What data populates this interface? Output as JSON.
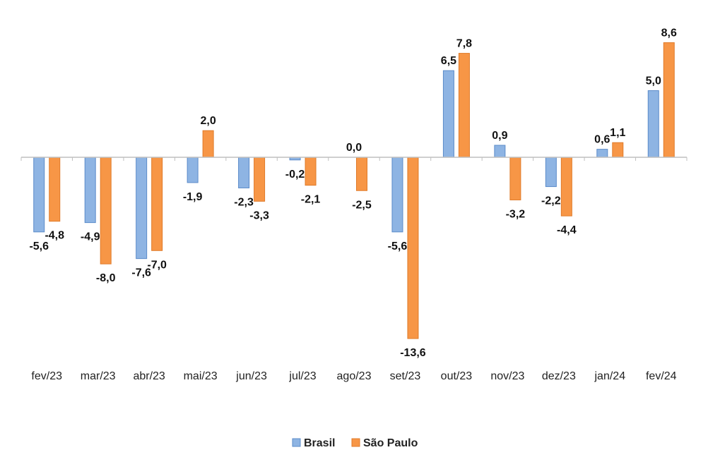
{
  "chart_data": {
    "type": "bar",
    "categories": [
      "fev/23",
      "mar/23",
      "abr/23",
      "mai/23",
      "jun/23",
      "jul/23",
      "ago/23",
      "set/23",
      "out/23",
      "nov/23",
      "dez/23",
      "jan/24",
      "fev/24"
    ],
    "series": [
      {
        "name": "Brasil",
        "color": "#8EB4E3",
        "border": "#5B8BC9",
        "values": [
          -5.6,
          -4.9,
          -7.6,
          -1.9,
          -2.3,
          -0.2,
          0.0,
          -5.6,
          6.5,
          0.9,
          -2.2,
          0.6,
          5.0
        ],
        "labels": [
          "-5,6",
          "-4,9",
          "-7,6",
          "-1,9",
          "-2,3",
          "-0,2",
          "0,0",
          "-5,6",
          "6,5",
          "0,9",
          "-2,2",
          "0,6",
          "5,0"
        ]
      },
      {
        "name": "São Paulo",
        "color": "#F79646",
        "border": "#E07B2A",
        "values": [
          -4.8,
          -8.0,
          -7.0,
          2.0,
          -3.3,
          -2.1,
          -2.5,
          -13.6,
          7.8,
          -3.2,
          -4.4,
          1.1,
          8.6
        ],
        "labels": [
          "-4,8",
          "-8,0",
          "-7,0",
          "2,0",
          "-3,3",
          "-2,1",
          "-2,5",
          "-13,6",
          "7,8",
          "-3,2",
          "-4,4",
          "1,1",
          "8,6"
        ]
      }
    ],
    "title": "",
    "xlabel": "",
    "ylabel": "",
    "ylim": [
      -14,
      9
    ],
    "grid": false,
    "legend_position": "bottom-center"
  }
}
